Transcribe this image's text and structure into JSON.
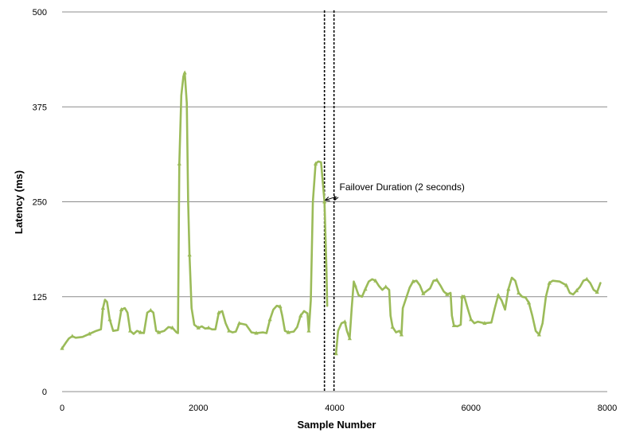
{
  "chart_data": {
    "type": "line",
    "title": "",
    "xlabel": "Sample Number",
    "ylabel": "Latency (ms)",
    "xlim": [
      0,
      8000
    ],
    "ylim": [
      0,
      500
    ],
    "x_ticks": [
      0,
      2000,
      4000,
      6000,
      8000
    ],
    "y_ticks": [
      0,
      125,
      250,
      375,
      500
    ],
    "x_tick_labels": [
      "0",
      "2000",
      "4000",
      "6000",
      "8000"
    ],
    "y_tick_labels": [
      "0",
      "125",
      "250",
      "375",
      "500"
    ],
    "grid": "horizontal",
    "series_color": "#9bbb59",
    "series": [
      {
        "points": [
          [
            0,
            57
          ],
          [
            60,
            65
          ],
          [
            100,
            70
          ],
          [
            150,
            73
          ],
          [
            200,
            71
          ],
          [
            300,
            72
          ],
          [
            400,
            76
          ],
          [
            500,
            80
          ],
          [
            570,
            82
          ],
          [
            600,
            110
          ],
          [
            630,
            121
          ],
          [
            660,
            118
          ],
          [
            700,
            95
          ],
          [
            750,
            80
          ],
          [
            820,
            81
          ],
          [
            870,
            108
          ],
          [
            920,
            110
          ],
          [
            960,
            104
          ],
          [
            1000,
            80
          ],
          [
            1050,
            76
          ],
          [
            1100,
            80
          ],
          [
            1150,
            78
          ],
          [
            1200,
            77
          ],
          [
            1250,
            104
          ],
          [
            1300,
            107
          ],
          [
            1340,
            104
          ],
          [
            1380,
            80
          ],
          [
            1420,
            78
          ],
          [
            1500,
            80
          ],
          [
            1560,
            85
          ],
          [
            1620,
            84
          ],
          [
            1680,
            78
          ],
          [
            1700,
            77
          ],
          [
            1720,
            300
          ],
          [
            1750,
            390
          ],
          [
            1780,
            415
          ],
          [
            1800,
            420
          ],
          [
            1830,
            380
          ],
          [
            1850,
            250
          ],
          [
            1870,
            180
          ],
          [
            1900,
            110
          ],
          [
            1940,
            88
          ],
          [
            2000,
            84
          ],
          [
            2050,
            86
          ],
          [
            2100,
            83
          ],
          [
            2150,
            84
          ],
          [
            2200,
            82
          ],
          [
            2250,
            82
          ],
          [
            2300,
            104
          ],
          [
            2350,
            106
          ],
          [
            2400,
            90
          ],
          [
            2450,
            80
          ],
          [
            2500,
            78
          ],
          [
            2550,
            79
          ],
          [
            2600,
            90
          ],
          [
            2700,
            88
          ],
          [
            2780,
            78
          ],
          [
            2850,
            77
          ],
          [
            2950,
            78
          ],
          [
            3000,
            77
          ],
          [
            3050,
            95
          ],
          [
            3100,
            108
          ],
          [
            3150,
            113
          ],
          [
            3200,
            112
          ],
          [
            3230,
            100
          ],
          [
            3270,
            80
          ],
          [
            3320,
            78
          ],
          [
            3400,
            79
          ],
          [
            3450,
            85
          ],
          [
            3500,
            100
          ],
          [
            3550,
            106
          ],
          [
            3600,
            103
          ],
          [
            3620,
            80
          ],
          [
            3650,
            120
          ],
          [
            3680,
            250
          ],
          [
            3720,
            300
          ],
          [
            3760,
            303
          ],
          [
            3800,
            302
          ],
          [
            3850,
            250
          ],
          [
            3880,
            160
          ],
          [
            3890,
            113
          ],
          [
            4020,
            50
          ],
          [
            4050,
            80
          ],
          [
            4100,
            90
          ],
          [
            4150,
            92
          ],
          [
            4180,
            80
          ],
          [
            4200,
            75
          ],
          [
            4220,
            70
          ],
          [
            4250,
            110
          ],
          [
            4280,
            145
          ],
          [
            4300,
            140
          ],
          [
            4350,
            127
          ],
          [
            4400,
            125
          ],
          [
            4450,
            135
          ],
          [
            4500,
            145
          ],
          [
            4550,
            148
          ],
          [
            4600,
            146
          ],
          [
            4650,
            139
          ],
          [
            4700,
            134
          ],
          [
            4750,
            138
          ],
          [
            4800,
            134
          ],
          [
            4820,
            100
          ],
          [
            4850,
            85
          ],
          [
            4900,
            78
          ],
          [
            4950,
            80
          ],
          [
            4980,
            75
          ],
          [
            5000,
            110
          ],
          [
            5100,
            137
          ],
          [
            5150,
            145
          ],
          [
            5200,
            146
          ],
          [
            5250,
            140
          ],
          [
            5300,
            129
          ],
          [
            5400,
            136
          ],
          [
            5450,
            146
          ],
          [
            5500,
            147
          ],
          [
            5550,
            140
          ],
          [
            5600,
            132
          ],
          [
            5650,
            128
          ],
          [
            5700,
            130
          ],
          [
            5720,
            100
          ],
          [
            5750,
            87
          ],
          [
            5800,
            86
          ],
          [
            5850,
            88
          ],
          [
            5870,
            125
          ],
          [
            5900,
            126
          ],
          [
            5950,
            110
          ],
          [
            6000,
            95
          ],
          [
            6050,
            90
          ],
          [
            6100,
            92
          ],
          [
            6200,
            90
          ],
          [
            6300,
            91
          ],
          [
            6350,
            110
          ],
          [
            6400,
            127
          ],
          [
            6450,
            120
          ],
          [
            6500,
            108
          ],
          [
            6550,
            135
          ],
          [
            6600,
            150
          ],
          [
            6650,
            146
          ],
          [
            6700,
            130
          ],
          [
            6750,
            125
          ],
          [
            6800,
            124
          ],
          [
            6850,
            117
          ],
          [
            6900,
            100
          ],
          [
            6950,
            80
          ],
          [
            7000,
            75
          ],
          [
            7050,
            90
          ],
          [
            7100,
            125
          ],
          [
            7150,
            143
          ],
          [
            7200,
            146
          ],
          [
            7300,
            145
          ],
          [
            7400,
            140
          ],
          [
            7450,
            130
          ],
          [
            7500,
            128
          ],
          [
            7550,
            133
          ],
          [
            7600,
            138
          ],
          [
            7650,
            146
          ],
          [
            7700,
            148
          ],
          [
            7750,
            143
          ],
          [
            7800,
            134
          ],
          [
            7850,
            131
          ],
          [
            7900,
            143
          ]
        ]
      }
    ],
    "markers": [
      {
        "x": 3850,
        "style": "dashed-vertical"
      },
      {
        "x": 3990,
        "style": "dashed-vertical"
      }
    ],
    "annotations": [
      {
        "text": "Failover Duration (2 seconds)",
        "x": 4070,
        "y": 262,
        "arrow_targets": [
          [
            3860,
            252
          ],
          [
            4000,
            252
          ]
        ]
      }
    ]
  }
}
